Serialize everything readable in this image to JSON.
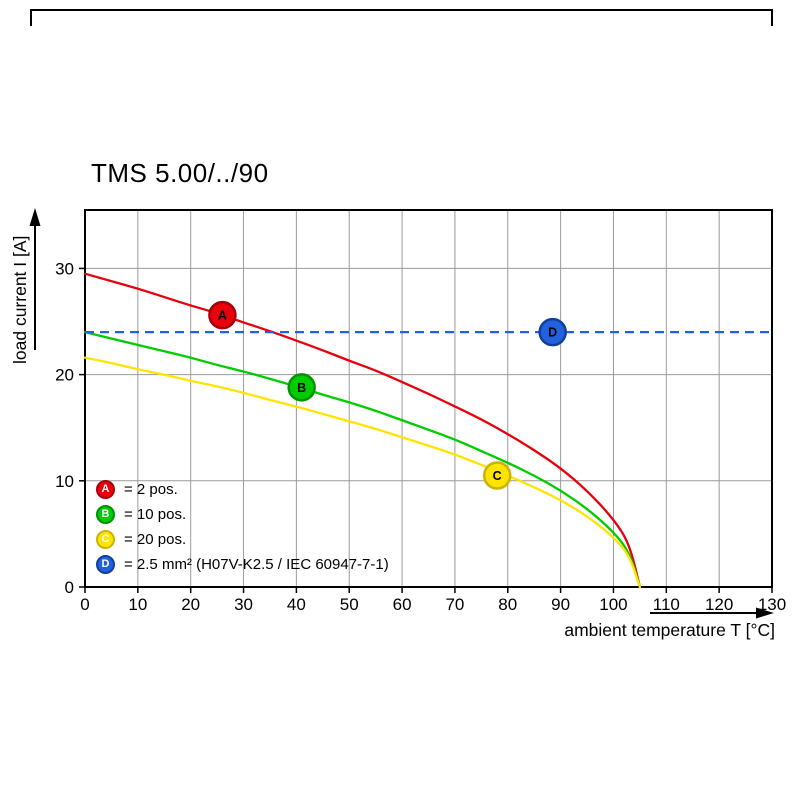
{
  "chart_data": {
    "type": "line",
    "title": "TMS 5.00/../90",
    "xlabel": "ambient temperature T [°C]",
    "ylabel": "load current I [A]",
    "xlim": [
      0,
      130
    ],
    "ylim": [
      0,
      35.5
    ],
    "x_ticks": [
      0,
      10,
      20,
      30,
      40,
      50,
      60,
      70,
      80,
      90,
      100,
      110,
      120,
      130
    ],
    "y_ticks": [
      0,
      10,
      20,
      30
    ],
    "grid": true,
    "legend_position": "bottom-left-inside",
    "series": [
      {
        "name": "A",
        "label": "2 pos.",
        "color": "#e8000d",
        "ring": "#a30009",
        "style": "solid",
        "marker_at": {
          "x": 26,
          "y": 25.6
        },
        "points": [
          [
            0,
            29.5
          ],
          [
            5,
            28.8
          ],
          [
            10,
            28.1
          ],
          [
            15,
            27.3
          ],
          [
            20,
            26.5
          ],
          [
            25,
            25.8
          ],
          [
            30,
            24.9
          ],
          [
            35,
            24.1
          ],
          [
            40,
            23.2
          ],
          [
            45,
            22.3
          ],
          [
            50,
            21.3
          ],
          [
            55,
            20.4
          ],
          [
            60,
            19.3
          ],
          [
            65,
            18.2
          ],
          [
            70,
            17.0
          ],
          [
            75,
            15.8
          ],
          [
            80,
            14.4
          ],
          [
            85,
            12.9
          ],
          [
            90,
            11.2
          ],
          [
            95,
            9.1
          ],
          [
            100,
            6.4
          ],
          [
            103,
            4.1
          ],
          [
            105,
            0
          ]
        ]
      },
      {
        "name": "B",
        "label": "10 pos.",
        "color": "#00cc00",
        "ring": "#009200",
        "style": "solid",
        "marker_at": {
          "x": 41,
          "y": 18.8
        },
        "points": [
          [
            0,
            24.0
          ],
          [
            5,
            23.4
          ],
          [
            10,
            22.8
          ],
          [
            15,
            22.2
          ],
          [
            20,
            21.6
          ],
          [
            25,
            20.9
          ],
          [
            30,
            20.3
          ],
          [
            35,
            19.6
          ],
          [
            40,
            18.9
          ],
          [
            45,
            18.1
          ],
          [
            50,
            17.4
          ],
          [
            55,
            16.6
          ],
          [
            60,
            15.7
          ],
          [
            65,
            14.8
          ],
          [
            70,
            13.9
          ],
          [
            75,
            12.8
          ],
          [
            80,
            11.7
          ],
          [
            85,
            10.5
          ],
          [
            90,
            9.1
          ],
          [
            95,
            7.4
          ],
          [
            100,
            5.2
          ],
          [
            103,
            3.3
          ],
          [
            105,
            0
          ]
        ]
      },
      {
        "name": "C",
        "label": "20 pos.",
        "color": "#ffe400",
        "ring": "#cbb400",
        "style": "solid",
        "marker_at": {
          "x": 78,
          "y": 10.5
        },
        "points": [
          [
            0,
            21.6
          ],
          [
            5,
            21.1
          ],
          [
            10,
            20.5
          ],
          [
            15,
            20.0
          ],
          [
            20,
            19.4
          ],
          [
            25,
            18.9
          ],
          [
            30,
            18.3
          ],
          [
            35,
            17.6
          ],
          [
            40,
            17.0
          ],
          [
            45,
            16.3
          ],
          [
            50,
            15.6
          ],
          [
            55,
            14.9
          ],
          [
            60,
            14.1
          ],
          [
            65,
            13.3
          ],
          [
            70,
            12.5
          ],
          [
            75,
            11.5
          ],
          [
            80,
            10.5
          ],
          [
            85,
            9.4
          ],
          [
            90,
            8.2
          ],
          [
            95,
            6.7
          ],
          [
            100,
            4.7
          ],
          [
            103,
            3.0
          ],
          [
            105,
            0
          ]
        ]
      },
      {
        "name": "D",
        "label": "2.5 mm² (H07V-K2.5 / IEC 60947-7-1)",
        "color": "#2262df",
        "ring": "#123f9a",
        "style": "dashed",
        "marker_at": {
          "x": 88.5,
          "y": 24
        },
        "points": [
          [
            0,
            24
          ],
          [
            130,
            24
          ]
        ]
      }
    ],
    "legend": [
      {
        "key": "A",
        "text": "= 2 pos."
      },
      {
        "key": "B",
        "text": "= 10 pos."
      },
      {
        "key": "C",
        "text": "= 20 pos."
      },
      {
        "key": "D",
        "text": "= 2.5 mm² (H07V-K2.5 / IEC 60947-7-1)"
      }
    ]
  }
}
